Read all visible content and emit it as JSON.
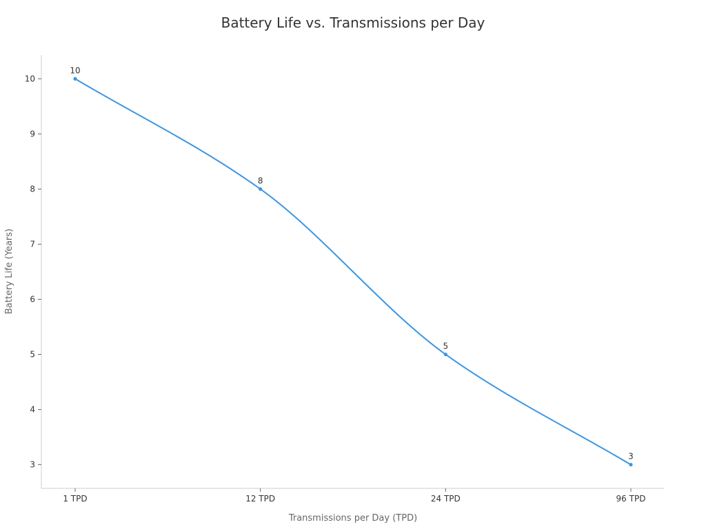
{
  "chart_data": {
    "type": "line",
    "title": "Battery Life vs. Transmissions per Day",
    "xlabel": "Transmissions per Day (TPD)",
    "ylabel": "Battery Life (Years)",
    "categories": [
      "1 TPD",
      "12 TPD",
      "24 TPD",
      "96 TPD"
    ],
    "series": [
      {
        "values": [
          10,
          8,
          5,
          3
        ],
        "color": "#3b96e3"
      }
    ],
    "ylim": [
      2.57,
      10.43
    ],
    "yticks": [
      3,
      4,
      5,
      6,
      7,
      8,
      9,
      10
    ],
    "curve": "smooth",
    "show_data_labels": true,
    "grid": false,
    "legend": "none"
  }
}
